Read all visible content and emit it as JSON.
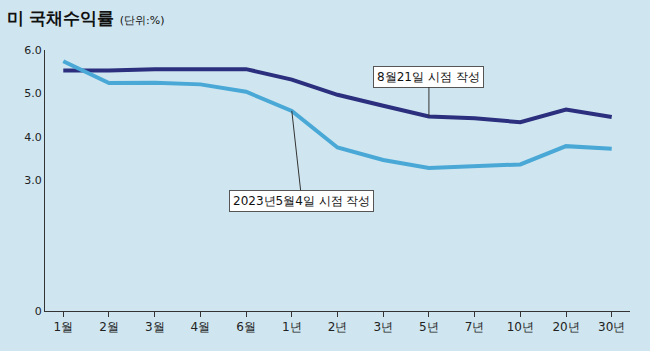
{
  "chart_data": {
    "type": "line",
    "title": "미 국채수익률",
    "subtitle": "(단위:%)",
    "categories": [
      "1월",
      "2월",
      "3월",
      "4월",
      "6월",
      "1년",
      "2년",
      "3년",
      "5년",
      "7년",
      "10년",
      "20년",
      "30년"
    ],
    "series": [
      {
        "name": "8월21일 시점 작성",
        "color": "#2b2f7e",
        "values": [
          5.53,
          5.53,
          5.56,
          5.55,
          5.56,
          5.32,
          4.97,
          4.72,
          4.47,
          4.43,
          4.34,
          4.63,
          4.46
        ]
      },
      {
        "name": "2023년5월4일 시점 작성",
        "color": "#4aa8d6",
        "values": [
          5.74,
          5.24,
          5.25,
          5.21,
          5.04,
          4.6,
          3.76,
          3.47,
          3.29,
          3.32,
          3.37,
          3.79,
          3.73
        ]
      }
    ],
    "ylim": [
      0,
      6
    ],
    "yticks": [
      0,
      {
        "value": 3,
        "label": "3.0"
      },
      {
        "value": 4,
        "label": "4.0"
      },
      {
        "value": 5,
        "label": "5.0"
      },
      {
        "value": 6,
        "label": "6.0"
      }
    ],
    "grid": false
  }
}
